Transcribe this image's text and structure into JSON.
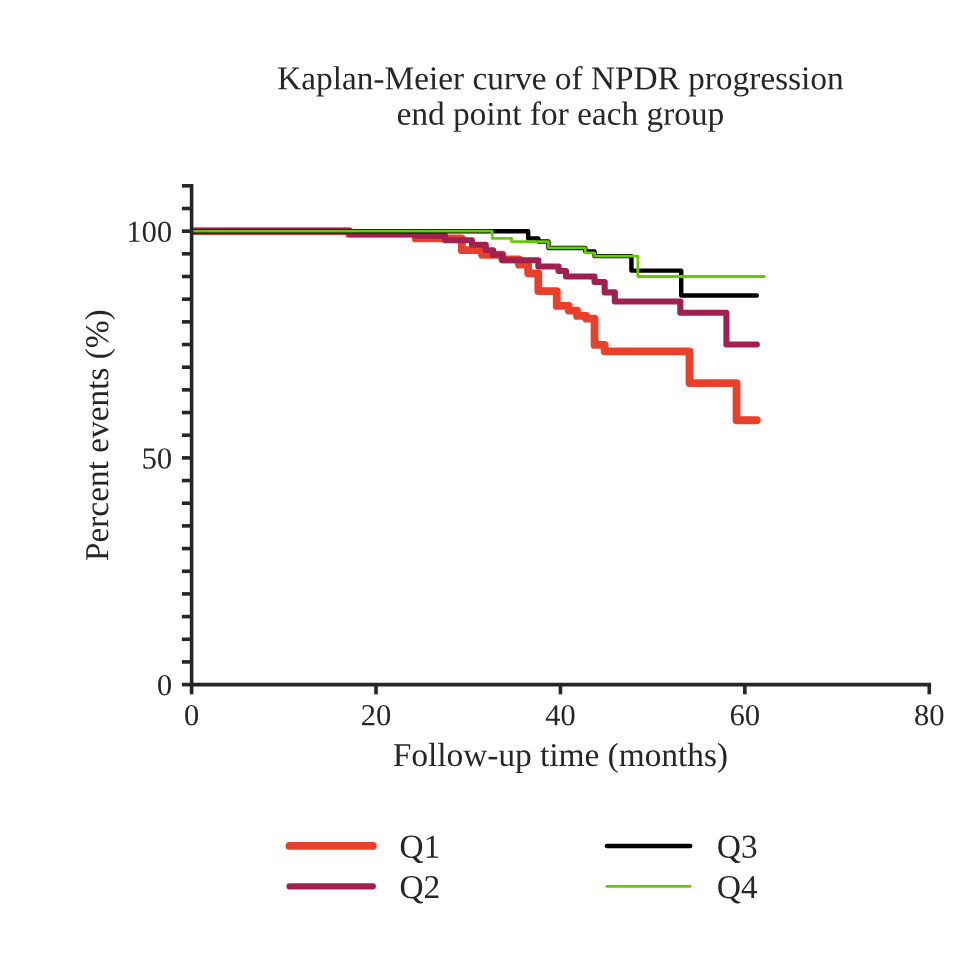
{
  "chart_data": {
    "type": "step",
    "title": "Kaplan-Meier curve of NPDR progression\nend point for each group",
    "xlabel": "Follow-up time (months)",
    "ylabel": "Percent events (%)",
    "xlim": [
      0,
      80
    ],
    "xticks": [
      0,
      20,
      40,
      60,
      80
    ],
    "ylim": [
      0,
      110
    ],
    "yticks": [
      0,
      {
        "value": 5,
        "label": null
      },
      {
        "value": 10,
        "label": null
      },
      {
        "value": 15,
        "label": null
      },
      {
        "value": 20,
        "label": null
      },
      {
        "value": 25,
        "label": null
      },
      {
        "value": 30,
        "label": null
      },
      {
        "value": 35,
        "label": null
      },
      {
        "value": 40,
        "label": null
      },
      {
        "value": 45,
        "label": null
      },
      50,
      {
        "value": 55,
        "label": null
      },
      {
        "value": 60,
        "label": null
      },
      {
        "value": 65,
        "label": null
      },
      {
        "value": 70,
        "label": null
      },
      {
        "value": 75,
        "label": null
      },
      {
        "value": 80,
        "label": null
      },
      {
        "value": 85,
        "label": null
      },
      {
        "value": 90,
        "label": null
      },
      {
        "value": 95,
        "label": null
      },
      100,
      {
        "value": 105,
        "label": null
      },
      {
        "value": 110,
        "label": null
      }
    ],
    "grid": false,
    "legend": "bottom",
    "series": [
      {
        "name": "Q1",
        "color": "#e8402a",
        "x": [
          0,
          17.1,
          24.3,
          29.3,
          31.5,
          33.7,
          35.5,
          36.5,
          37.6,
          39.6,
          40.9,
          41.8,
          42.8,
          43.7,
          44.8,
          54.0,
          59.1,
          61.3
        ],
        "values": [
          100,
          99.4,
          98.4,
          95.8,
          94.8,
          93.8,
          92.6,
          90.7,
          86.8,
          83.5,
          82.5,
          81.3,
          80.7,
          74.9,
          73.5,
          66.5,
          58.3,
          58.3
        ]
      },
      {
        "name": "Q2",
        "color": "#a0204f",
        "x": [
          0,
          17.1,
          24.3,
          27.5,
          30.4,
          31.9,
          32.7,
          33.7,
          37.6,
          39.8,
          40.6,
          43.7,
          44.8,
          45.9,
          53.0,
          58.0,
          61.3
        ],
        "values": [
          100,
          99.4,
          99.0,
          98.0,
          97.0,
          95.8,
          94.8,
          93.6,
          92.2,
          91.2,
          90.0,
          88.8,
          86.5,
          84.5,
          82.0,
          75.0,
          75.0
        ]
      },
      {
        "name": "Q3",
        "color": "#000000",
        "x": [
          0,
          36.5,
          37.6,
          38.7,
          42.7,
          43.7,
          47.7,
          53.1,
          61.3
        ],
        "values": [
          100,
          98.4,
          97.7,
          96.3,
          95.5,
          94.5,
          91.3,
          85.8,
          85.8
        ]
      },
      {
        "name": "Q4",
        "color": "#66cc00",
        "x": [
          0,
          32.6,
          34.7,
          38.7,
          42.7,
          43.7,
          48.4,
          62.1
        ],
        "values": [
          100,
          98.4,
          97.7,
          96.3,
          95.2,
          94.5,
          90.0,
          90.0
        ]
      }
    ]
  }
}
